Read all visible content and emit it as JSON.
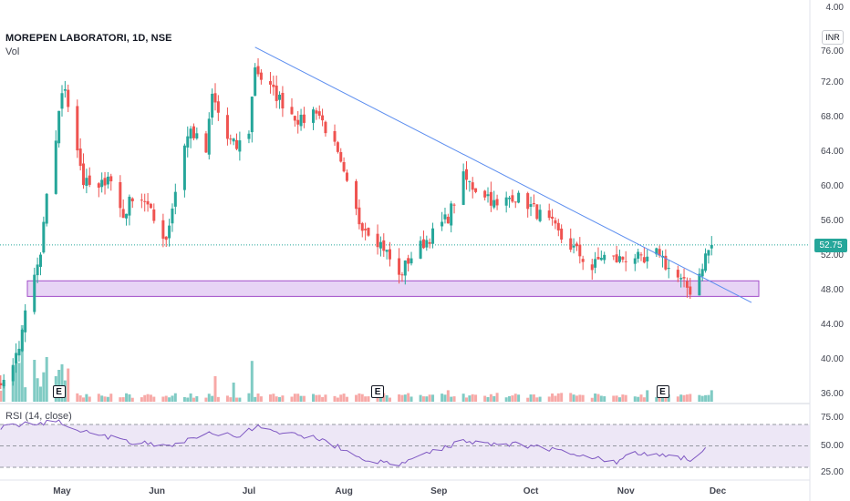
{
  "header": {
    "symbol_title": "MOREPEN LABORATORI, 1D, NSE",
    "volume_label": "Vol",
    "rsi_label": "RSI (14, close)",
    "currency": "INR",
    "last_price": "52.75"
  },
  "earnings_badges": [
    {
      "label": "E",
      "date": "2024-04-30"
    },
    {
      "label": "E",
      "date": "2024-08-12"
    },
    {
      "label": "E",
      "date": "2024-11-13"
    }
  ],
  "colors": {
    "up": "#26a69a",
    "down": "#ef5350",
    "up_volume": "#80cbc4",
    "down_volume": "#f7a9a7",
    "trendline": "#5b8def",
    "support_zone_fill": "#e7d4f5",
    "support_zone_stroke": "#a24ec9",
    "rsi_line": "#7e57c2",
    "rsi_band": "#ede7f6"
  },
  "chart_data": [
    {
      "type": "candlestick",
      "title": "MOREPEN LABORATORI, 1D, NSE",
      "price_ticks": [
        "4.00",
        "76.00",
        "72.00",
        "68.00",
        "64.00",
        "60.00",
        "56.00",
        "52.00",
        "48.00",
        "44.00",
        "40.00",
        "36.00"
      ],
      "month_labels": [
        "May",
        "Jun",
        "Jul",
        "Aug",
        "Sep",
        "Oct",
        "Nov",
        "Dec"
      ],
      "month_dates": [
        "2024-05-01",
        "2024-06-01",
        "2024-07-01",
        "2024-08-01",
        "2024-09-01",
        "2024-10-01",
        "2024-11-01",
        "2024-12-01"
      ],
      "grid": false,
      "support_zone": {
        "date_from": "2024-04-05",
        "date_to": "2024-12-05",
        "price_low": 46.8,
        "price_high": 48.6
      },
      "trendline": {
        "from": {
          "date": "2024-07-03",
          "price": 75.6
        },
        "to": {
          "date": "2024-12-12",
          "price": 46.1
        }
      },
      "last_price_line": 52.75,
      "anchors": [
        [
          "2024-04-15",
          38.2
        ],
        [
          "2024-04-19",
          44.5
        ],
        [
          "2024-04-22",
          49.0
        ],
        [
          "2024-04-24",
          51.5
        ],
        [
          "2024-04-26",
          58.0
        ],
        [
          "2024-04-29",
          65.0
        ],
        [
          "2024-04-30",
          68.5
        ],
        [
          "2024-05-02",
          71.0
        ],
        [
          "2024-05-06",
          64.0
        ],
        [
          "2024-05-08",
          60.0
        ],
        [
          "2024-05-13",
          59.0
        ],
        [
          "2024-05-16",
          61.0
        ],
        [
          "2024-05-21",
          56.0
        ],
        [
          "2024-05-24",
          58.5
        ],
        [
          "2024-05-28",
          58.0
        ],
        [
          "2024-05-31",
          55.5
        ],
        [
          "2024-06-04",
          53.5
        ],
        [
          "2024-06-07",
          59.0
        ],
        [
          "2024-06-10",
          64.5
        ],
        [
          "2024-06-12",
          66.0
        ],
        [
          "2024-06-17",
          63.5
        ],
        [
          "2024-06-19",
          70.0
        ],
        [
          "2024-06-24",
          65.0
        ],
        [
          "2024-06-27",
          64.0
        ],
        [
          "2024-07-01",
          66.0
        ],
        [
          "2024-07-03",
          73.5
        ],
        [
          "2024-07-05",
          72.0
        ],
        [
          "2024-07-10",
          70.0
        ],
        [
          "2024-07-15",
          68.0
        ],
        [
          "2024-07-18",
          67.0
        ],
        [
          "2024-07-23",
          68.5
        ],
        [
          "2024-07-29",
          64.0
        ],
        [
          "2024-08-02",
          59.5
        ],
        [
          "2024-08-06",
          55.5
        ],
        [
          "2024-08-09",
          54.5
        ],
        [
          "2024-08-14",
          52.5
        ],
        [
          "2024-08-19",
          49.0
        ],
        [
          "2024-08-22",
          51.0
        ],
        [
          "2024-08-27",
          53.0
        ],
        [
          "2024-08-30",
          54.0
        ],
        [
          "2024-09-04",
          56.0
        ],
        [
          "2024-09-09",
          60.5
        ],
        [
          "2024-09-12",
          59.5
        ],
        [
          "2024-09-17",
          58.5
        ],
        [
          "2024-09-20",
          57.0
        ],
        [
          "2024-09-25",
          58.5
        ],
        [
          "2024-09-30",
          57.5
        ],
        [
          "2024-10-03",
          56.5
        ],
        [
          "2024-10-08",
          55.0
        ],
        [
          "2024-10-11",
          53.5
        ],
        [
          "2024-10-16",
          52.0
        ],
        [
          "2024-10-21",
          50.0
        ],
        [
          "2024-10-24",
          51.5
        ],
        [
          "2024-10-29",
          51.0
        ],
        [
          "2024-11-04",
          51.5
        ],
        [
          "2024-11-07",
          50.5
        ],
        [
          "2024-11-12",
          52.0
        ],
        [
          "2024-11-14",
          50.5
        ],
        [
          "2024-11-19",
          48.5
        ],
        [
          "2024-11-22",
          47.5
        ],
        [
          "2024-11-25",
          49.5
        ],
        [
          "2024-11-27",
          51.5
        ],
        [
          "2024-11-29",
          52.75
        ]
      ],
      "volume_events": [
        [
          "2024-04-18",
          6.0
        ],
        [
          "2024-04-26",
          3.5
        ],
        [
          "2024-04-29",
          2.0
        ],
        [
          "2024-04-30",
          2.5
        ],
        [
          "2024-05-02",
          1.6
        ],
        [
          "2024-06-20",
          2.0
        ],
        [
          "2024-06-26",
          1.5
        ],
        [
          "2024-07-02",
          3.2
        ],
        [
          "2024-09-04",
          0.9
        ],
        [
          "2024-11-08",
          0.9
        ],
        [
          "2024-11-29",
          0.9
        ]
      ]
    },
    {
      "type": "line",
      "title": "RSI (14, close)",
      "y_ticks": [
        "75.00",
        "50.00",
        "25.00"
      ],
      "ylim": [
        20,
        82
      ],
      "bands": [
        30,
        50,
        70
      ],
      "anchors": [
        [
          "2024-04-05",
          66
        ],
        [
          "2024-04-19",
          70
        ],
        [
          "2024-04-30",
          73
        ],
        [
          "2024-05-08",
          64
        ],
        [
          "2024-05-21",
          55
        ],
        [
          "2024-06-04",
          49
        ],
        [
          "2024-06-19",
          63
        ],
        [
          "2024-06-27",
          58
        ],
        [
          "2024-07-03",
          68
        ],
        [
          "2024-07-10",
          62
        ],
        [
          "2024-07-23",
          58
        ],
        [
          "2024-08-02",
          45
        ],
        [
          "2024-08-09",
          36
        ],
        [
          "2024-08-19",
          32
        ],
        [
          "2024-08-27",
          42
        ],
        [
          "2024-09-09",
          55
        ],
        [
          "2024-09-17",
          52
        ],
        [
          "2024-09-25",
          52
        ],
        [
          "2024-10-08",
          47
        ],
        [
          "2024-10-21",
          40
        ],
        [
          "2024-10-29",
          35
        ],
        [
          "2024-11-04",
          43
        ],
        [
          "2024-11-12",
          42
        ],
        [
          "2024-11-22",
          38
        ],
        [
          "2024-11-29",
          52
        ]
      ]
    }
  ]
}
